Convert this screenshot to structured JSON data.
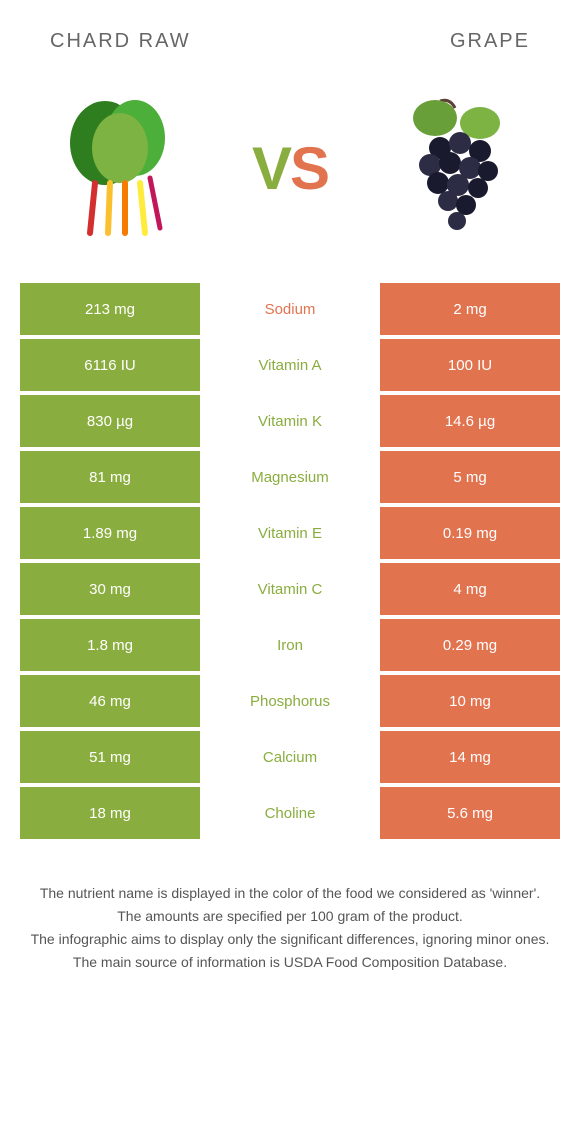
{
  "colors": {
    "left": "#8aad3f",
    "right": "#e2734f",
    "mid_text_win_left": "#8aad3f",
    "mid_text_win_right": "#e2734f"
  },
  "header": {
    "left_title": "CHARD RAW",
    "right_title": "GRAPE"
  },
  "vs": {
    "v": "V",
    "s": "S"
  },
  "rows": [
    {
      "left": "213 mg",
      "mid": "Sodium",
      "right": "2 mg",
      "winner": "right"
    },
    {
      "left": "6116 IU",
      "mid": "Vitamin A",
      "right": "100 IU",
      "winner": "left"
    },
    {
      "left": "830 µg",
      "mid": "Vitamin K",
      "right": "14.6 µg",
      "winner": "left"
    },
    {
      "left": "81 mg",
      "mid": "Magnesium",
      "right": "5 mg",
      "winner": "left"
    },
    {
      "left": "1.89 mg",
      "mid": "Vitamin E",
      "right": "0.19 mg",
      "winner": "left"
    },
    {
      "left": "30 mg",
      "mid": "Vitamin C",
      "right": "4 mg",
      "winner": "left"
    },
    {
      "left": "1.8 mg",
      "mid": "Iron",
      "right": "0.29 mg",
      "winner": "left"
    },
    {
      "left": "46 mg",
      "mid": "Phosphorus",
      "right": "10 mg",
      "winner": "left"
    },
    {
      "left": "51 mg",
      "mid": "Calcium",
      "right": "14 mg",
      "winner": "left"
    },
    {
      "left": "18 mg",
      "mid": "Choline",
      "right": "5.6 mg",
      "winner": "left"
    }
  ],
  "footer": {
    "line1": "The nutrient name is displayed in the color of the food we considered as 'winner'.",
    "line2": "The amounts are specified per 100 gram of the product.",
    "line3": "The infographic aims to display only the significant differences, ignoring minor ones.",
    "line4": "The main source of information is USDA Food Composition Database."
  }
}
